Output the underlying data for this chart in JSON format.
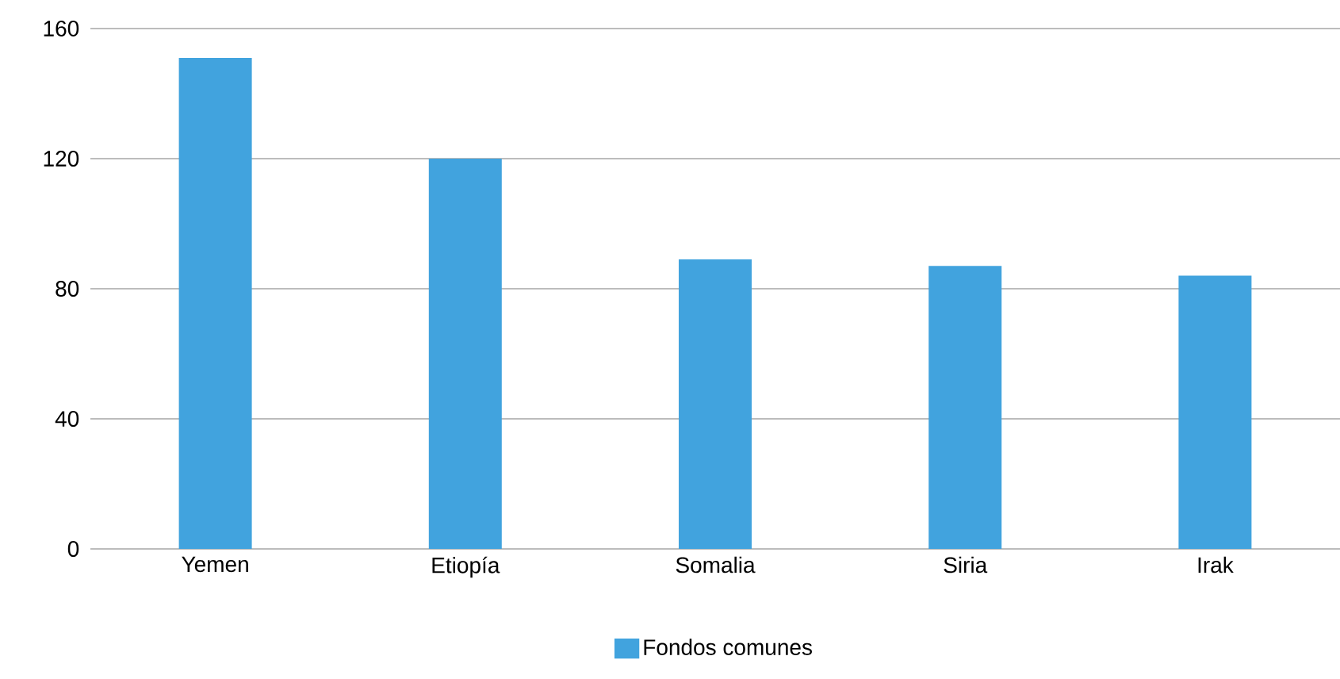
{
  "chart_data": {
    "type": "bar",
    "categories": [
      "Yemen",
      "Etiopía",
      "Somalia",
      "Siria",
      "Irak"
    ],
    "series": [
      {
        "name": "Fondos comunes",
        "color": "#41a3de",
        "values": [
          151,
          120,
          89,
          87,
          84
        ]
      }
    ],
    "ylim": [
      0,
      160
    ],
    "yticks": [
      0,
      40,
      80,
      120,
      160
    ],
    "grid": "y",
    "legend": "bottom"
  }
}
